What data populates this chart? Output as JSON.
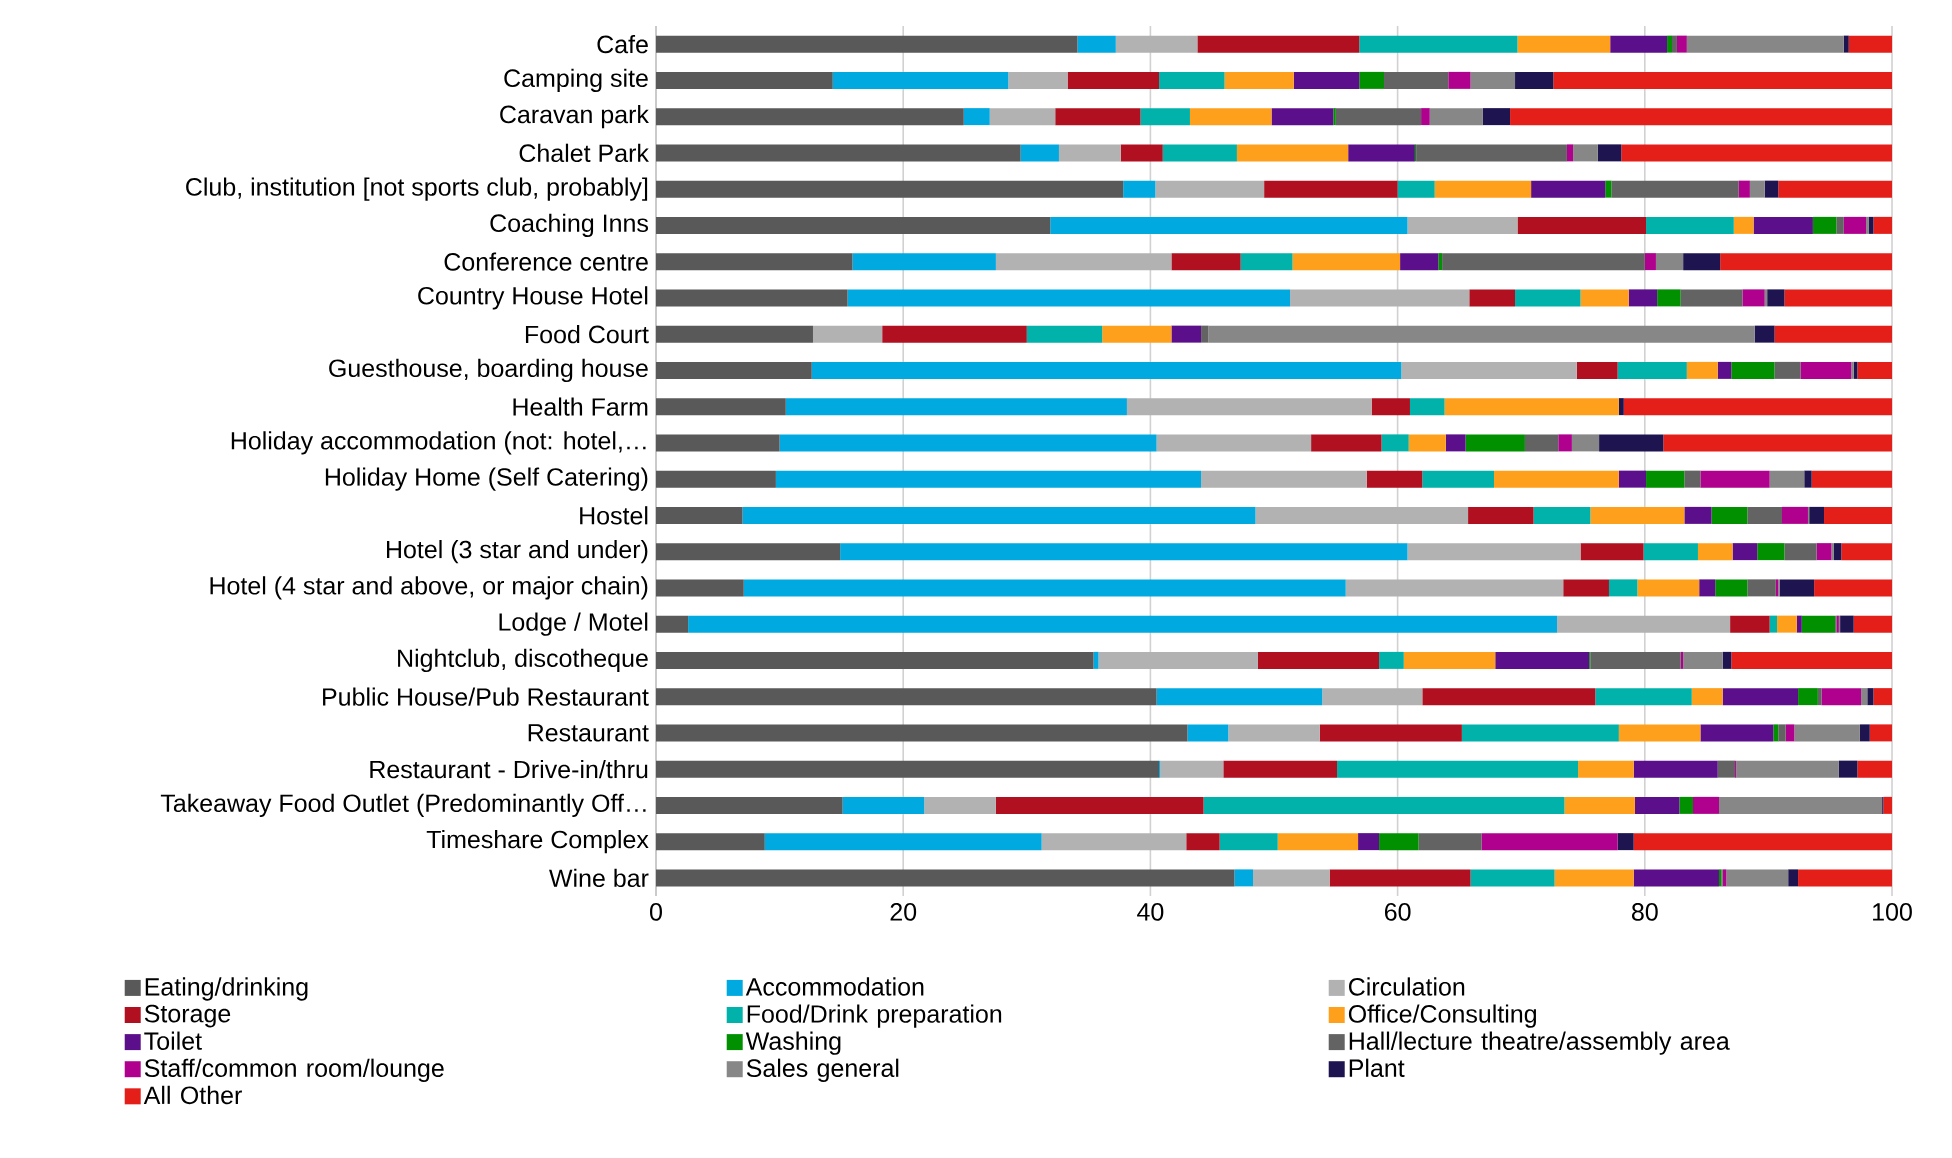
{
  "chart_data": {
    "type": "bar",
    "orientation": "horizontal",
    "stacked": true,
    "grid": "x",
    "legend": "bottom",
    "categories": [
      "Cafe",
      "Camping site",
      "Caravan park",
      "Chalet Park",
      "Club, institution [not sports club, probably]",
      "Coaching Inns",
      "Conference centre",
      "Country House Hotel",
      "Food Court",
      "Guesthouse, boarding house",
      "Health Farm",
      "Holiday accommodation (not: hotel,…",
      "Holiday Home (Self Catering)",
      "Hostel",
      "Hotel (3 star and under)",
      "Hotel (4 star and above, or major chain)",
      "Lodge / Motel",
      "Nightclub, discotheque",
      "Public House/Pub Restaurant",
      "Restaurant",
      "Restaurant - Drive-in/thru",
      "Takeaway Food Outlet (Predominantly Off…",
      "Timeshare Complex",
      "Wine bar"
    ],
    "xlim": [
      0,
      100
    ],
    "xticks": [
      0,
      20,
      40,
      60,
      80,
      100
    ],
    "series": [
      {
        "name": "Eating/drinking",
        "color": "#595959",
        "values": [
          34.1,
          14.3,
          24.9,
          29.5,
          37.8,
          31.9,
          15.9,
          15.5,
          12.7,
          12.6,
          10.5,
          10.0,
          9.7,
          7.0,
          14.9,
          7.1,
          2.6,
          35.4,
          40.5,
          43.0,
          40.7,
          15.1,
          8.8,
          46.8
        ]
      },
      {
        "name": "Accommodation",
        "color": "#00a9e0",
        "values": [
          3.1,
          14.2,
          2.1,
          3.1,
          2.6,
          28.9,
          11.6,
          35.8,
          0,
          47.7,
          27.6,
          30.5,
          34.4,
          41.5,
          45.9,
          48.7,
          70.3,
          0.4,
          13.4,
          3.3,
          0.1,
          6.6,
          22.4,
          1.5
        ]
      },
      {
        "name": "Circulation",
        "color": "#b2b2b2",
        "values": [
          6.6,
          4.8,
          5.3,
          5.0,
          8.8,
          8.9,
          14.2,
          14.5,
          5.6,
          14.2,
          19.8,
          12.5,
          13.4,
          17.2,
          14.0,
          17.6,
          14.0,
          12.9,
          8.1,
          7.4,
          5.1,
          5.8,
          11.7,
          6.2
        ]
      },
      {
        "name": "Storage",
        "color": "#b01020",
        "values": [
          13.1,
          7.4,
          6.9,
          3.4,
          10.8,
          10.4,
          5.6,
          3.7,
          11.7,
          3.3,
          3.1,
          5.7,
          4.5,
          5.3,
          5.1,
          3.7,
          3.2,
          9.8,
          14.0,
          11.5,
          9.2,
          16.8,
          2.7,
          11.4
        ]
      },
      {
        "name": "Food/Drink preparation",
        "color": "#00b2a9",
        "values": [
          12.8,
          5.3,
          4.0,
          6.0,
          3.0,
          7.1,
          4.2,
          5.3,
          6.1,
          5.6,
          2.8,
          2.2,
          5.8,
          4.6,
          4.4,
          2.3,
          0.6,
          2.0,
          7.8,
          12.7,
          19.5,
          29.2,
          4.7,
          6.8
        ]
      },
      {
        "name": "Office/Consulting",
        "color": "#ffa01c",
        "values": [
          7.5,
          5.6,
          6.6,
          9.0,
          7.8,
          1.6,
          8.7,
          3.9,
          5.6,
          2.5,
          14.1,
          3.0,
          10.1,
          7.6,
          2.8,
          5.0,
          1.6,
          7.4,
          2.5,
          6.6,
          4.5,
          5.7,
          6.5,
          6.4
        ]
      },
      {
        "name": "Toilet",
        "color": "#5c0f8b",
        "values": [
          4.6,
          5.3,
          5.0,
          5.4,
          6.0,
          4.8,
          3.1,
          2.3,
          2.4,
          1.1,
          0,
          1.6,
          2.2,
          2.2,
          2.0,
          1.3,
          0.4,
          7.6,
          6.1,
          5.9,
          6.8,
          3.6,
          1.7,
          6.9
        ]
      },
      {
        "name": "Washing",
        "color": "#009000",
        "values": [
          0.4,
          2.0,
          0.2,
          0.1,
          0.5,
          1.9,
          0.3,
          1.9,
          0,
          3.5,
          0,
          4.8,
          3.1,
          2.9,
          2.2,
          2.6,
          2.7,
          0.1,
          1.6,
          0.4,
          0,
          1.1,
          3.2,
          0.2
        ]
      },
      {
        "name": "Hall/lecture theatre/assembly area",
        "color": "#636363",
        "values": [
          0.4,
          5.2,
          6.9,
          12.2,
          10.3,
          0.6,
          16.4,
          5.0,
          0.6,
          2.1,
          0,
          2.7,
          1.3,
          2.8,
          2.6,
          2.3,
          0.1,
          7.3,
          0.3,
          0.6,
          1.4,
          0,
          5.1,
          0.1
        ]
      },
      {
        "name": "Staff/common room/lounge",
        "color": "#b0008e",
        "values": [
          0.8,
          1.8,
          0.7,
          0.5,
          0.9,
          1.8,
          0.9,
          1.8,
          0,
          4.1,
          0,
          1.1,
          5.6,
          2.1,
          1.2,
          0.2,
          0.2,
          0.2,
          3.2,
          0.7,
          0.1,
          2.1,
          11.0,
          0.3
        ]
      },
      {
        "name": "Sales general",
        "color": "#878787",
        "values": [
          12.7,
          3.6,
          4.3,
          2.0,
          1.2,
          0.2,
          2.2,
          0.2,
          44.2,
          0.2,
          0,
          2.2,
          2.8,
          0.1,
          0.2,
          0.1,
          0.1,
          3.2,
          0.5,
          5.3,
          8.3,
          13.2,
          0,
          5.0
        ]
      },
      {
        "name": "Plant",
        "color": "#1e1450",
        "values": [
          0.4,
          3.1,
          2.2,
          1.9,
          1.1,
          0.4,
          3.0,
          1.4,
          1.6,
          0.3,
          0.4,
          5.2,
          0.6,
          1.2,
          0.6,
          2.8,
          1.1,
          0.7,
          0.5,
          0.8,
          1.5,
          0.1,
          1.3,
          0.8
        ]
      },
      {
        "name": "All Other",
        "color": "#e41f1a",
        "values": [
          3.5,
          27.4,
          30.9,
          21.9,
          9.2,
          1.5,
          13.9,
          8.7,
          9.5,
          2.8,
          21.7,
          18.5,
          6.5,
          5.5,
          4.1,
          6.3,
          3.1,
          13.0,
          1.5,
          1.8,
          2.8,
          0.7,
          20.9,
          7.6
        ]
      }
    ]
  }
}
